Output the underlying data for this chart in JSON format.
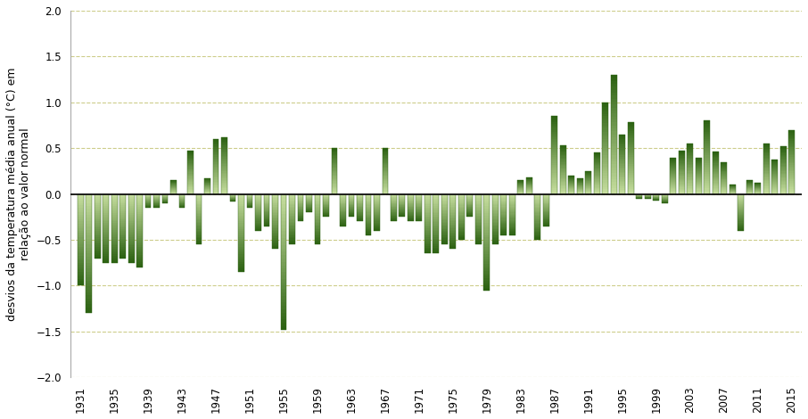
{
  "years": [
    1931,
    1932,
    1933,
    1934,
    1935,
    1936,
    1937,
    1938,
    1939,
    1940,
    1941,
    1942,
    1943,
    1944,
    1945,
    1946,
    1947,
    1948,
    1949,
    1950,
    1951,
    1952,
    1953,
    1954,
    1955,
    1956,
    1957,
    1958,
    1959,
    1960,
    1961,
    1962,
    1963,
    1964,
    1965,
    1966,
    1967,
    1968,
    1969,
    1970,
    1971,
    1972,
    1973,
    1974,
    1975,
    1976,
    1977,
    1978,
    1979,
    1980,
    1981,
    1982,
    1983,
    1984,
    1985,
    1986,
    1987,
    1988,
    1989,
    1990,
    1991,
    1992,
    1993,
    1994,
    1995,
    1996,
    1997,
    1998,
    1999,
    2000,
    2001,
    2002,
    2003,
    2004,
    2005,
    2006,
    2007,
    2008,
    2009,
    2010,
    2011,
    2012,
    2013,
    2014,
    2015
  ],
  "values": [
    -1.0,
    -1.3,
    -0.7,
    -0.75,
    -0.75,
    -0.7,
    -0.75,
    -0.8,
    -0.15,
    -0.15,
    -0.1,
    0.15,
    -0.15,
    0.47,
    -0.55,
    0.17,
    0.6,
    0.62,
    -0.08,
    -0.85,
    -0.15,
    -0.4,
    -0.35,
    -0.6,
    -1.48,
    -0.55,
    -0.3,
    -0.2,
    -0.55,
    -0.25,
    0.5,
    -0.35,
    -0.25,
    -0.3,
    -0.45,
    -0.4,
    0.5,
    -0.3,
    -0.25,
    -0.3,
    -0.3,
    -0.65,
    -0.65,
    -0.55,
    -0.6,
    -0.5,
    -0.25,
    -0.55,
    -1.05,
    -0.55,
    -0.45,
    -0.45,
    0.15,
    0.18,
    -0.5,
    -0.35,
    0.85,
    0.53,
    0.2,
    0.17,
    0.25,
    0.45,
    1.0,
    1.3,
    0.65,
    0.78,
    -0.05,
    -0.05,
    -0.07,
    -0.1,
    0.4,
    0.47,
    0.55,
    0.4,
    0.8,
    0.46,
    0.35,
    0.1,
    -0.4,
    0.15,
    0.12,
    0.55,
    0.38,
    0.52,
    0.7
  ],
  "ylabel": "desvios da temperatura média anual (°C) em\nrelação ao valor normal",
  "ylim": [
    -2.0,
    2.0
  ],
  "yticks": [
    -2.0,
    -1.5,
    -1.0,
    -0.5,
    0.0,
    0.5,
    1.0,
    1.5,
    2.0
  ],
  "xtick_years": [
    1931,
    1935,
    1939,
    1943,
    1947,
    1951,
    1955,
    1959,
    1963,
    1967,
    1971,
    1975,
    1979,
    1983,
    1987,
    1991,
    1995,
    1999,
    2003,
    2007,
    2011,
    2015
  ],
  "bar_light": "#c8dfa0",
  "bar_dark": "#2a6010",
  "background_color": "#ffffff",
  "grid_color": "#c8c87e",
  "grid_alpha": 0.9,
  "zero_line_color": "#111111",
  "ylabel_fontsize": 9,
  "tick_fontsize": 8.5,
  "bar_width": 0.72
}
